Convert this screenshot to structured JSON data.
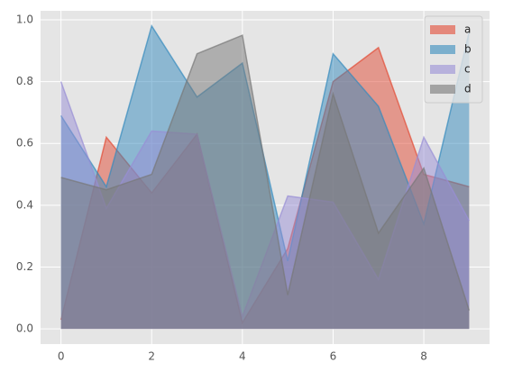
{
  "chart_data": {
    "type": "area",
    "stacked": false,
    "x": [
      0,
      1,
      2,
      3,
      4,
      5,
      6,
      7,
      8,
      9
    ],
    "series": [
      {
        "name": "a",
        "color": "#E24A33",
        "values": [
          0.03,
          0.62,
          0.44,
          0.63,
          0.02,
          0.26,
          0.8,
          0.91,
          0.5,
          0.46
        ]
      },
      {
        "name": "b",
        "color": "#348ABD",
        "values": [
          0.69,
          0.46,
          0.98,
          0.75,
          0.86,
          0.22,
          0.89,
          0.72,
          0.34,
          0.96
        ]
      },
      {
        "name": "c",
        "color": "#988ED5",
        "values": [
          0.8,
          0.39,
          0.64,
          0.63,
          0.04,
          0.43,
          0.41,
          0.16,
          0.62,
          0.35
        ]
      },
      {
        "name": "d",
        "color": "#777777",
        "values": [
          0.49,
          0.45,
          0.5,
          0.89,
          0.95,
          0.11,
          0.76,
          0.31,
          0.52,
          0.06
        ]
      }
    ],
    "xlim": [
      -0.45,
      9.45
    ],
    "ylim": [
      -0.049,
      1.029
    ],
    "xticks": [
      0,
      2,
      4,
      6,
      8
    ],
    "yticks": [
      {
        "value": 0,
        "label": "0.0"
      },
      {
        "value": 0.2,
        "label": "0.2"
      },
      {
        "value": 0.4,
        "label": "0.4"
      },
      {
        "value": 0.6,
        "label": "0.6"
      },
      {
        "value": 0.8,
        "label": "0.8"
      },
      {
        "value": 1.0,
        "label": "1.0"
      }
    ],
    "grid": true,
    "legend": "upper right"
  }
}
